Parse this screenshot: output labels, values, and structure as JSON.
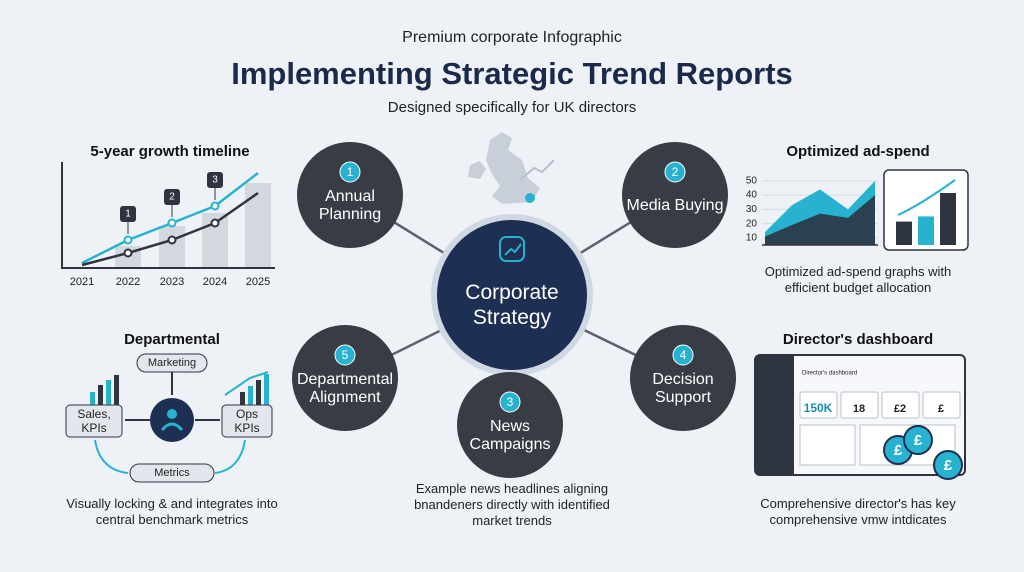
{
  "header": {
    "kicker": "Premium corporate Infographic",
    "title": "Implementing Strategic Trend Reports",
    "subtitle": "Designed specifically for UK directors"
  },
  "center": {
    "label": "Corporate Strategy"
  },
  "nodes": [
    {
      "number": "1",
      "label": "Annual Planning"
    },
    {
      "number": "2",
      "label": "Media Buying"
    },
    {
      "number": "3",
      "label": "News Campaigns"
    },
    {
      "number": "4",
      "label": "Decision Support"
    },
    {
      "number": "5",
      "label": "Departmental Alignment"
    }
  ],
  "news_caption": "Example news headlines aligning bnandeners directly with identified market trends",
  "timeline": {
    "title": "5-year growth timeline",
    "categories": [
      "2021",
      "2022",
      "2023",
      "2024",
      "2025"
    ],
    "ylim": [
      0,
      100
    ],
    "bars": [
      null,
      22,
      42,
      55,
      85
    ],
    "markers": [
      null,
      "1",
      "2",
      "3",
      null
    ],
    "series": [
      {
        "color": "#27b3d0",
        "values": [
          5,
          28,
          45,
          62,
          95
        ]
      },
      {
        "color": "#2e3440",
        "values": [
          3,
          15,
          28,
          45,
          75
        ]
      }
    ]
  },
  "ad_spend": {
    "title": "Optimized ad-spend",
    "ylim": [
      5,
      52
    ],
    "yticks": [
      10,
      20,
      30,
      40,
      50
    ],
    "series": [
      {
        "color": "#27b3d0",
        "values": [
          14,
          33,
          44,
          30,
          50
        ]
      },
      {
        "color": "#2e3440",
        "values": [
          11,
          19,
          27,
          24,
          40
        ]
      }
    ],
    "bars": {
      "values": [
        18,
        22,
        40
      ],
      "colors": [
        "#2e3440",
        "#27b3d0",
        "#2e3440"
      ]
    },
    "caption": "Optimized ad-spend graphs with efficient budget allocation"
  },
  "departmental": {
    "title": "Departmental",
    "top": "Marketing",
    "left": "Sales, KPIs",
    "right": "Ops KPIs",
    "bottom": "Metrics",
    "caption": "Visually locking & and integrates into central benchmark metrics"
  },
  "dashboard": {
    "title": "Director's dashboard",
    "header": "Director's dashboard",
    "kpis": [
      "150K",
      "18",
      "£2",
      "£"
    ],
    "coins": [
      "£",
      "£",
      "£"
    ],
    "caption": "Comprehensive director's has key comprehensive vmw intdicates"
  }
}
